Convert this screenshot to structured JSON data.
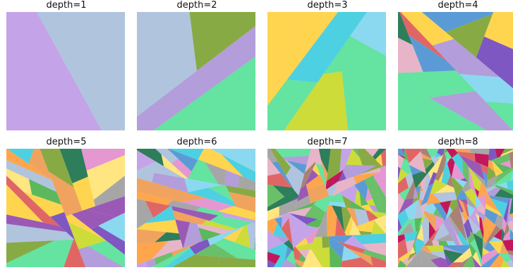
{
  "panels": [
    {
      "title": "depth=1",
      "depth": 1
    },
    {
      "title": "depth=2",
      "depth": 2
    },
    {
      "title": "depth=3",
      "depth": 3
    },
    {
      "title": "depth=4",
      "depth": 4
    },
    {
      "title": "depth=5",
      "depth": 5
    },
    {
      "title": "depth=6",
      "depth": 6
    },
    {
      "title": "depth=7",
      "depth": 7
    },
    {
      "title": "depth=8",
      "depth": 8
    }
  ],
  "palette": [
    "#f0a35e",
    "#5b9bd5",
    "#e06666",
    "#6abf69",
    "#a6a6a6",
    "#b39ddb",
    "#e597d2",
    "#a98274",
    "#4dd0e1",
    "#2e7d5b",
    "#c5a3e8",
    "#7e57c2",
    "#64e3a1",
    "#ffe680",
    "#8bd9f0",
    "#ffa64d",
    "#e8b4c8",
    "#5cb85c",
    "#9b59b6",
    "#b0c4de",
    "#c2185b",
    "#ffd54f",
    "#88aa44",
    "#cddc39"
  ]
}
